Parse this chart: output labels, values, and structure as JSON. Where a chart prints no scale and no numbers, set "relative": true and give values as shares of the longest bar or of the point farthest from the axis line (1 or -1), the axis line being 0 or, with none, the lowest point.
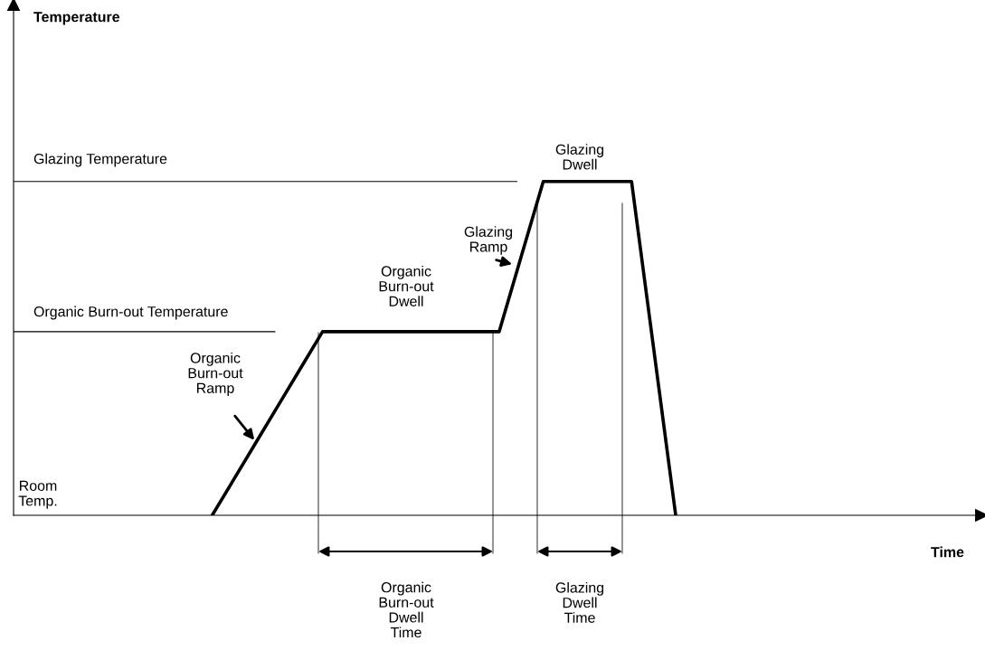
{
  "chart_data": {
    "type": "line",
    "relative": true,
    "tick_labels": false,
    "xlabel": "Time",
    "categories": [
      null,
      null,
      null,
      null,
      null,
      null,
      null,
      null,
      null,
      null,
      null,
      null,
      null,
      null,
      null,
      null,
      null,
      null,
      null,
      null,
      null,
      null,
      null,
      null,
      null,
      null,
      null,
      null,
      null,
      null,
      null,
      null,
      null,
      null,
      null,
      null,
      null,
      null,
      null,
      null,
      null,
      null,
      null,
      null
    ],
    "series": [
      {
        "color": "#000000",
        "values": [
          null,
          null,
          null,
          null,
          null,
          null,
          null,
          null,
          null,
          0,
          0.11,
          0.22,
          0.33,
          0.44,
          0.55,
          0.55,
          0.55,
          0.55,
          0.55,
          0.55,
          0.55,
          0.55,
          0.55,
          0.775,
          1,
          1,
          1,
          1,
          1,
          0.5,
          0,
          null,
          null,
          null,
          null,
          null,
          null,
          null,
          null,
          null,
          null,
          null,
          null,
          null
        ]
      }
    ],
    "ref_lines": [
      {
        "axis": "y",
        "value": 1,
        "label": "Glazing Temperature",
        "color": "#000000"
      },
      {
        "axis": "y",
        "value": 0.55,
        "label": "Organic Burn-out Temperature",
        "color": "#000000"
      }
    ],
    "annotations": [
      "Temperature",
      "Room\nTemp.",
      "Organic\nBurn-out\nRamp",
      "Organic\nBurn-out\nDwell",
      "Glazing\nRamp",
      "Glazing\nDwell",
      "Organic\nBurn-out\nDwell\nTime",
      "Glazing\nDwell\nTime"
    ]
  }
}
